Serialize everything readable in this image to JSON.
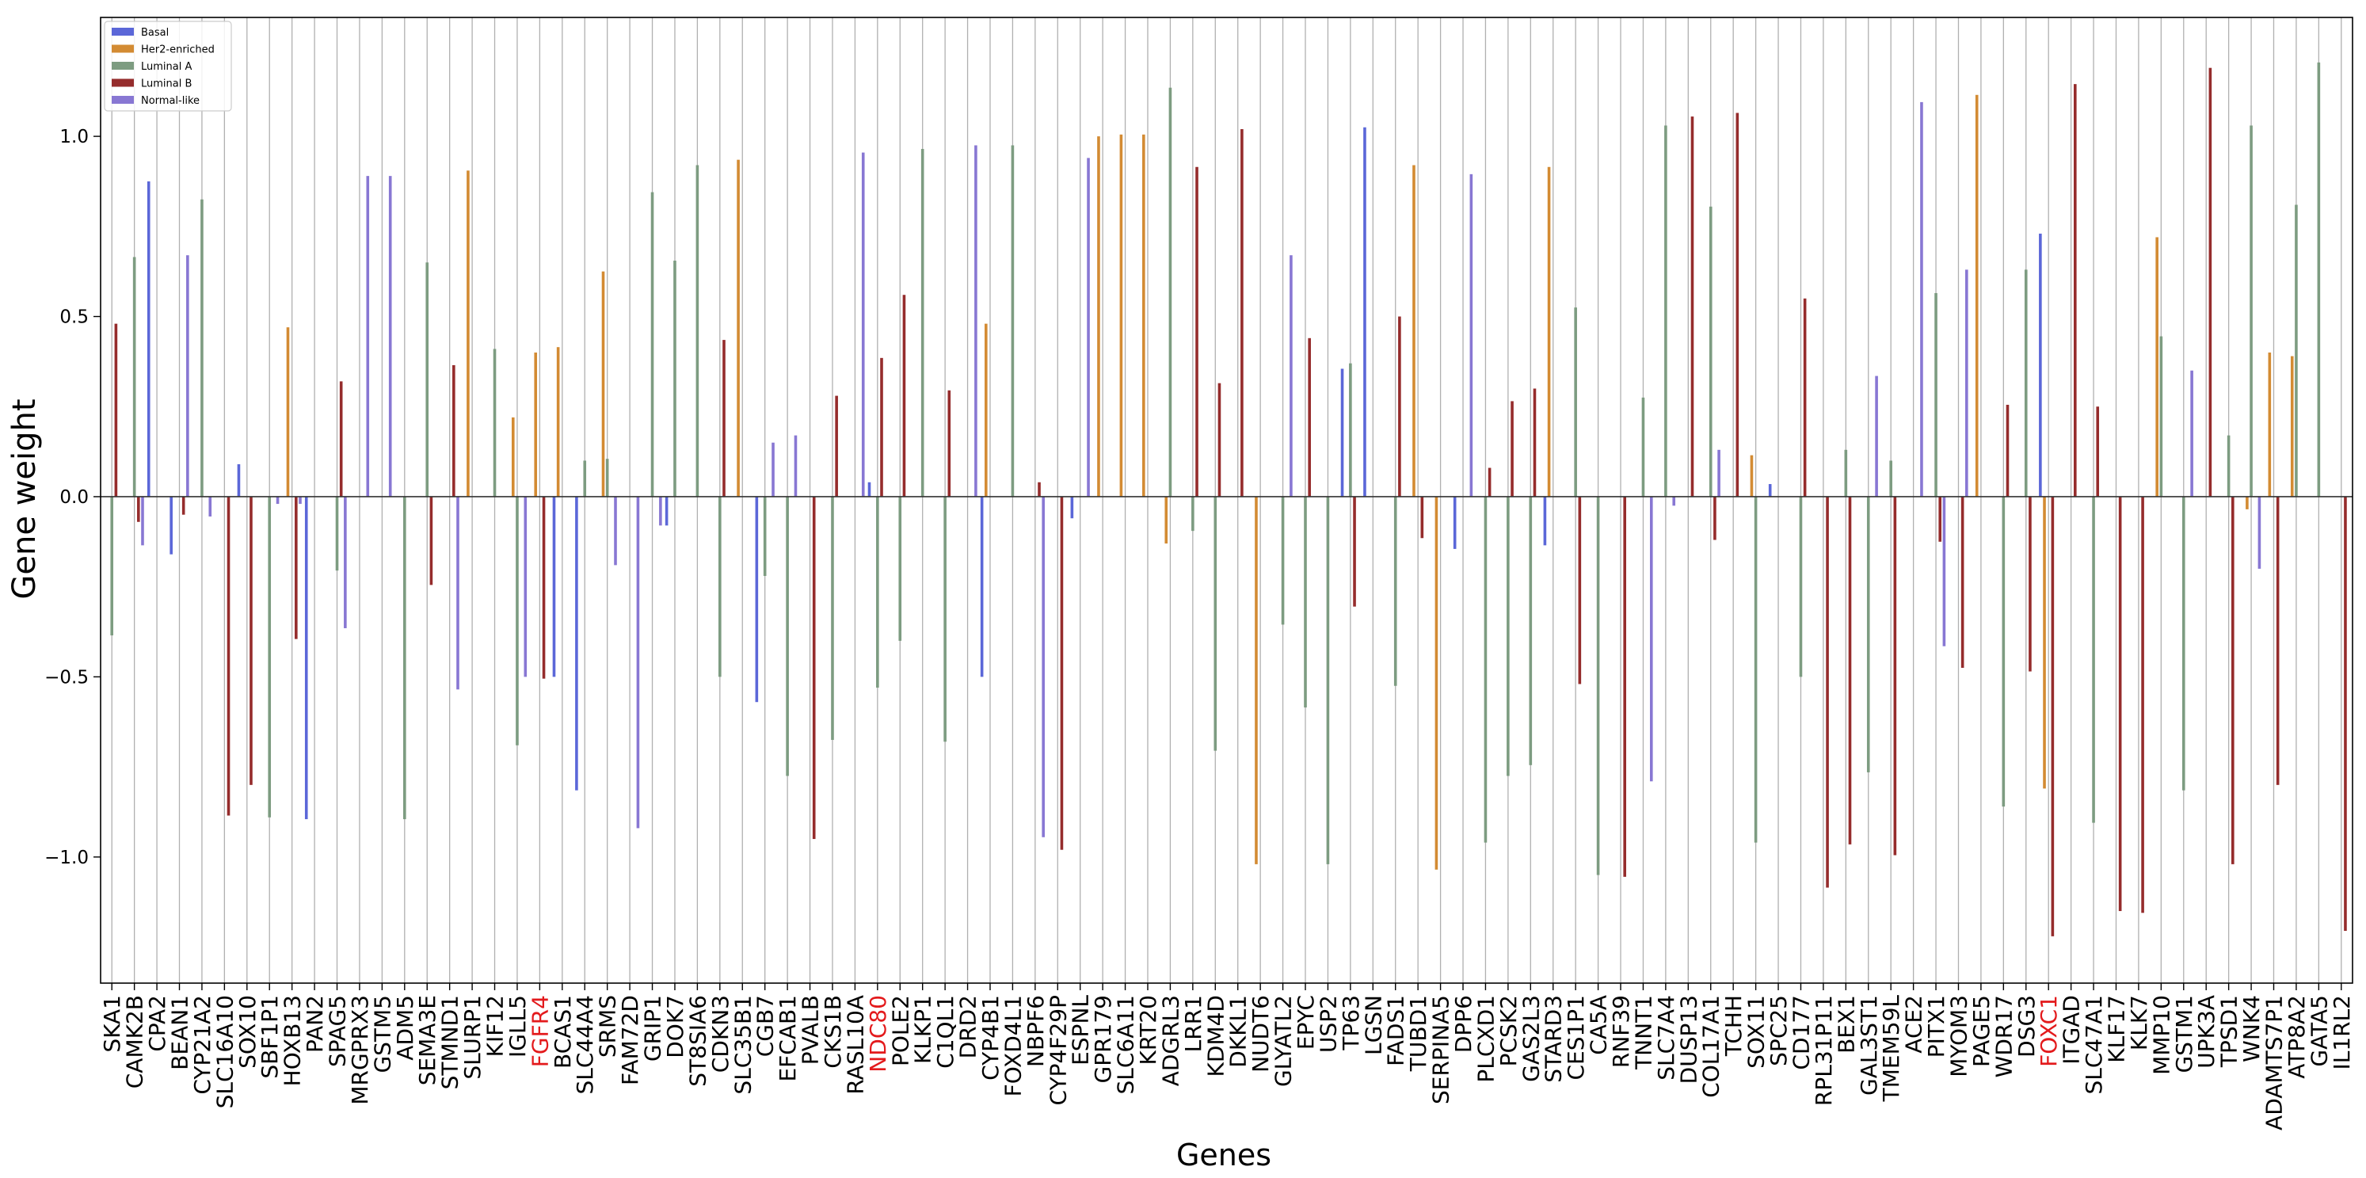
{
  "chart_data": {
    "type": "bar",
    "title": "",
    "xlabel": "Genes",
    "ylabel": "Gene weight",
    "ylim": [
      -1.35,
      1.33
    ],
    "yticks": [
      -1.0,
      -0.5,
      0.0,
      0.5,
      1.0
    ],
    "ytick_labels": [
      "−1.0",
      "−0.5",
      "0.0",
      "0.5",
      "1.0"
    ],
    "grid": "vertical",
    "legend_placement": "top-left",
    "highlighted_genes": [
      "FGFR4",
      "NDC80",
      "FOXC1"
    ],
    "highlight_color": "#e31a1c",
    "categories": [
      "SKA1",
      "CAMK2B",
      "CPA2",
      "BEAN1",
      "CYP21A2",
      "SLC16A10",
      "SOX10",
      "SBF1P1",
      "HOXB13",
      "PAN2",
      "SPAG5",
      "MRGPRX3",
      "GSTM5",
      "ADM5",
      "SEMA3E",
      "STMND1",
      "SLURP1",
      "KIF12",
      "IGLL5",
      "FGFR4",
      "BCAS1",
      "SLC44A4",
      "SRMS",
      "FAM72D",
      "GRIP1",
      "DOK7",
      "ST8SIA6",
      "CDKN3",
      "SLC35B1",
      "CGB7",
      "EFCAB1",
      "PVALB",
      "CKS1B",
      "RASL10A",
      "NDC80",
      "POLE2",
      "KLKP1",
      "C1QL1",
      "DRD2",
      "CYP4B1",
      "FOXD4L1",
      "NBPF6",
      "CYP4F29P",
      "ESPNL",
      "GPR179",
      "SLC6A11",
      "KRT20",
      "ADGRL3",
      "LRR1",
      "KDM4D",
      "DKKL1",
      "NUDT6",
      "GLYATL2",
      "EPYC",
      "USP2",
      "TP63",
      "LGSN",
      "FADS1",
      "TUBD1",
      "SERPINA5",
      "DPP6",
      "PLCXD1",
      "PCSK2",
      "GAS2L3",
      "STARD3",
      "CES1P1",
      "CA5A",
      "RNF39",
      "TNNT1",
      "SLC7A4",
      "DUSP13",
      "COL17A1",
      "TCHH",
      "SOX11",
      "SPC25",
      "CD177",
      "RPL31P11",
      "BEX1",
      "GAL3ST1",
      "TMEM59L",
      "ACE2",
      "PITX1",
      "MYOM3",
      "PAGE5",
      "WDR17",
      "DSG3",
      "FOXC1",
      "ITGAD",
      "SLC47A1",
      "KLF17",
      "KLK7",
      "MMP10",
      "GSTM1",
      "UPK3A",
      "TPSD1",
      "WNK4",
      "ADAMTS7P1",
      "ATP8A2",
      "GATA5",
      "IL1RL2"
    ],
    "series": [
      {
        "name": "Basal",
        "color": "#5b67d8",
        "values": [
          0,
          0,
          0.875,
          -0.16,
          0,
          0,
          0.09,
          0,
          0,
          -0.895,
          0,
          0,
          0,
          0,
          0,
          0,
          0,
          0,
          0,
          0,
          -0.5,
          -0.815,
          0,
          0,
          0,
          -0.08,
          0,
          0,
          0,
          -0.57,
          0,
          0,
          0,
          0,
          0.04,
          0,
          0,
          0,
          0,
          -0.5,
          0,
          0,
          0,
          -0.06,
          0,
          0,
          0,
          0,
          0,
          0,
          0,
          0,
          0,
          0,
          0,
          0.355,
          1.025,
          0,
          0,
          0,
          -0.145,
          0,
          0,
          0,
          -0.135,
          0,
          0,
          0,
          0,
          0,
          0,
          0,
          0,
          0,
          0.035,
          0,
          0,
          0,
          0,
          0,
          0,
          0,
          0,
          0,
          0,
          0,
          0.73,
          0,
          0,
          0,
          0,
          0,
          0,
          0,
          0,
          0,
          0,
          0,
          0,
          0
        ]
      },
      {
        "name": "Her2-enriched",
        "color": "#d38b33",
        "values": [
          0,
          0,
          0,
          0,
          0,
          0,
          0,
          0,
          0.47,
          0,
          0,
          0,
          0,
          0,
          0,
          0,
          0.905,
          0,
          0.22,
          0.4,
          0.415,
          0,
          0.625,
          0,
          0,
          0,
          0,
          0,
          0.935,
          0,
          0,
          0,
          0,
          0,
          0,
          0,
          0,
          0,
          0,
          0.48,
          0,
          0,
          0,
          0,
          1.0,
          1.005,
          1.005,
          -0.13,
          0,
          0,
          0,
          -1.02,
          0,
          0,
          0,
          0,
          0,
          0,
          0.92,
          -1.035,
          0,
          0,
          0,
          0,
          0.915,
          0,
          0,
          0,
          0,
          0,
          0,
          0,
          0,
          0.115,
          0,
          0,
          0,
          0,
          0,
          0,
          0,
          0,
          0,
          1.115,
          0,
          0,
          -0.81,
          0,
          0,
          0,
          0,
          0.72,
          0,
          0,
          0,
          -0.035,
          0.4,
          0.39,
          0,
          0
        ]
      },
      {
        "name": "Luminal A",
        "color": "#7d9c81",
        "values": [
          -0.385,
          0.665,
          0,
          0,
          0.825,
          0,
          0,
          -0.89,
          0,
          0,
          -0.205,
          0,
          0,
          -0.895,
          0.65,
          0,
          0,
          0.41,
          -0.69,
          0,
          0,
          0.1,
          0.105,
          0,
          0.845,
          0.655,
          0.92,
          -0.5,
          0,
          -0.22,
          -0.775,
          0,
          -0.675,
          0,
          -0.53,
          -0.4,
          0.965,
          -0.68,
          0,
          0,
          0.975,
          0,
          0,
          0,
          0,
          0,
          0,
          1.135,
          -0.095,
          -0.705,
          0,
          0,
          -0.355,
          -0.585,
          -1.02,
          0.37,
          0,
          -0.525,
          0,
          0,
          0,
          -0.96,
          -0.775,
          -0.745,
          0,
          0.525,
          -1.05,
          0,
          0.275,
          1.03,
          0,
          0.805,
          0,
          -0.96,
          0,
          -0.5,
          0,
          0.13,
          -0.765,
          0.1,
          0,
          0.565,
          0,
          0,
          -0.86,
          0.63,
          0,
          0,
          -0.905,
          0,
          0,
          0.445,
          -0.815,
          0,
          0.17,
          1.03,
          0,
          0.81,
          1.205,
          0
        ]
      },
      {
        "name": "Luminal B",
        "color": "#952c2c",
        "values": [
          0.48,
          -0.07,
          0,
          -0.05,
          0,
          -0.885,
          -0.8,
          0,
          -0.395,
          0,
          0.32,
          0,
          0,
          0,
          -0.245,
          0.365,
          0,
          0,
          0,
          -0.505,
          0,
          0,
          0,
          0,
          0,
          0,
          0,
          0.435,
          0,
          0,
          0,
          -0.95,
          0.28,
          0,
          0.385,
          0.56,
          0,
          0.295,
          0,
          0,
          0,
          0.04,
          -0.98,
          0,
          0,
          0,
          0,
          0,
          0.915,
          0.315,
          1.02,
          0,
          0,
          0.44,
          0,
          -0.305,
          0,
          0.5,
          -0.115,
          0,
          0,
          0.08,
          0.265,
          0.3,
          0,
          -0.52,
          0,
          -1.055,
          0,
          0,
          1.055,
          -0.12,
          1.065,
          0,
          0,
          0.55,
          -1.085,
          -0.965,
          0,
          -0.995,
          0,
          -0.125,
          -0.475,
          0,
          0.255,
          -0.485,
          -1.22,
          1.145,
          0.25,
          -1.15,
          -1.155,
          0,
          0,
          1.19,
          -1.02,
          0,
          -0.8,
          0,
          0,
          -1.205
        ]
      },
      {
        "name": "Normal-like",
        "color": "#8877d3",
        "values": [
          0,
          -0.135,
          0,
          0.67,
          -0.055,
          0,
          0,
          -0.02,
          -0.02,
          0,
          -0.365,
          0.89,
          0.89,
          0,
          0,
          -0.535,
          0,
          0,
          -0.5,
          0,
          0,
          0,
          -0.19,
          -0.92,
          -0.08,
          0,
          0,
          0,
          0,
          0.15,
          0.17,
          0,
          0,
          0.955,
          0,
          0,
          0,
          0,
          0.975,
          0,
          0,
          -0.945,
          0,
          0.94,
          0,
          0,
          0,
          0,
          0,
          0,
          0,
          0,
          0.67,
          0,
          0,
          0,
          0,
          0,
          0,
          0,
          0.895,
          0,
          0,
          0,
          0,
          0,
          0,
          0,
          -0.79,
          -0.025,
          0,
          0.13,
          0,
          0,
          0,
          0,
          0,
          0,
          0.335,
          0,
          1.095,
          -0.415,
          0.63,
          0,
          0,
          0,
          0,
          0,
          0,
          0,
          0,
          0,
          0.35,
          0,
          0,
          -0.2,
          0,
          0,
          0,
          0
        ]
      }
    ]
  }
}
